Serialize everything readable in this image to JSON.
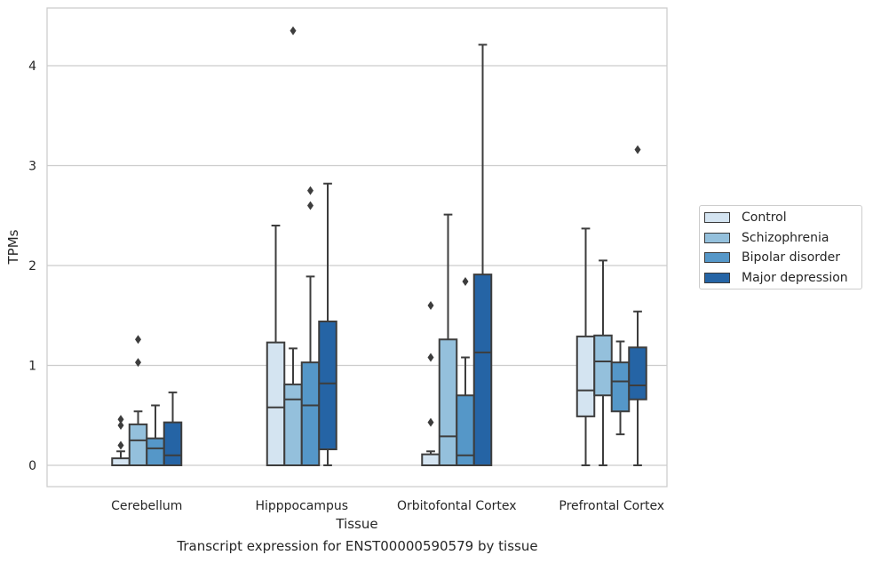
{
  "caption": "Transcript expression for ENST00000590579 by tissue",
  "chart_data": {
    "type": "boxplot",
    "xlabel": "Tissue",
    "ylabel": "TPMs",
    "ylim": [
      -0.21,
      4.58
    ],
    "yticks": [
      0,
      1,
      2,
      3,
      4
    ],
    "grid": "horizontal",
    "legend_position": "right",
    "categories": [
      "Cerebellum",
      "Hipppocampus",
      "Orbitofontal Cortex",
      "Prefrontal Cortex"
    ],
    "series": [
      {
        "name": "Control",
        "color": "#d4e4f1",
        "boxes": [
          {
            "whislo": 0,
            "q1": 0,
            "med": 0,
            "q3": 0.07,
            "whishi": 0.14,
            "fliers": [
              0.2,
              0.4,
              0.46
            ]
          },
          {
            "whislo": 0,
            "q1": 0,
            "med": 0.58,
            "q3": 1.23,
            "whishi": 2.4,
            "fliers": []
          },
          {
            "whislo": 0,
            "q1": 0,
            "med": 0,
            "q3": 0.11,
            "whishi": 0.14,
            "fliers": [
              0.43,
              1.08,
              1.6
            ]
          },
          {
            "whislo": 0,
            "q1": 0.49,
            "med": 0.75,
            "q3": 1.29,
            "whishi": 2.37,
            "fliers": []
          }
        ]
      },
      {
        "name": "Schizophrenia",
        "color": "#94c0dc",
        "boxes": [
          {
            "whislo": 0,
            "q1": 0,
            "med": 0.25,
            "q3": 0.41,
            "whishi": 0.54,
            "fliers": [
              1.03,
              1.26
            ]
          },
          {
            "whislo": 0,
            "q1": 0,
            "med": 0.66,
            "q3": 0.81,
            "whishi": 1.17,
            "fliers": [
              4.35
            ]
          },
          {
            "whislo": 0,
            "q1": 0,
            "med": 0.29,
            "q3": 1.26,
            "whishi": 2.51,
            "fliers": []
          },
          {
            "whislo": 0,
            "q1": 0.7,
            "med": 1.04,
            "q3": 1.3,
            "whishi": 2.05,
            "fliers": []
          }
        ]
      },
      {
        "name": "Bipolar disorder",
        "color": "#5597c8",
        "boxes": [
          {
            "whislo": 0,
            "q1": 0,
            "med": 0.17,
            "q3": 0.27,
            "whishi": 0.6,
            "fliers": []
          },
          {
            "whislo": 0,
            "q1": 0,
            "med": 0.6,
            "q3": 1.03,
            "whishi": 1.89,
            "fliers": [
              2.6,
              2.75
            ]
          },
          {
            "whislo": 0,
            "q1": 0,
            "med": 0.1,
            "q3": 0.7,
            "whishi": 1.08,
            "fliers": [
              1.84
            ]
          },
          {
            "whislo": 0.31,
            "q1": 0.54,
            "med": 0.84,
            "q3": 1.03,
            "whishi": 1.24,
            "fliers": []
          }
        ]
      },
      {
        "name": "Major depression",
        "color": "#2564a5",
        "boxes": [
          {
            "whislo": 0,
            "q1": 0,
            "med": 0.1,
            "q3": 0.43,
            "whishi": 0.73,
            "fliers": []
          },
          {
            "whislo": 0,
            "q1": 0.16,
            "med": 0.82,
            "q3": 1.44,
            "whishi": 2.82,
            "fliers": []
          },
          {
            "whislo": 0,
            "q1": 0,
            "med": 1.13,
            "q3": 1.91,
            "whishi": 4.21,
            "fliers": []
          },
          {
            "whislo": 0,
            "q1": 0.66,
            "med": 0.8,
            "q3": 1.18,
            "whishi": 1.54,
            "fliers": [
              3.16
            ]
          }
        ]
      }
    ]
  }
}
